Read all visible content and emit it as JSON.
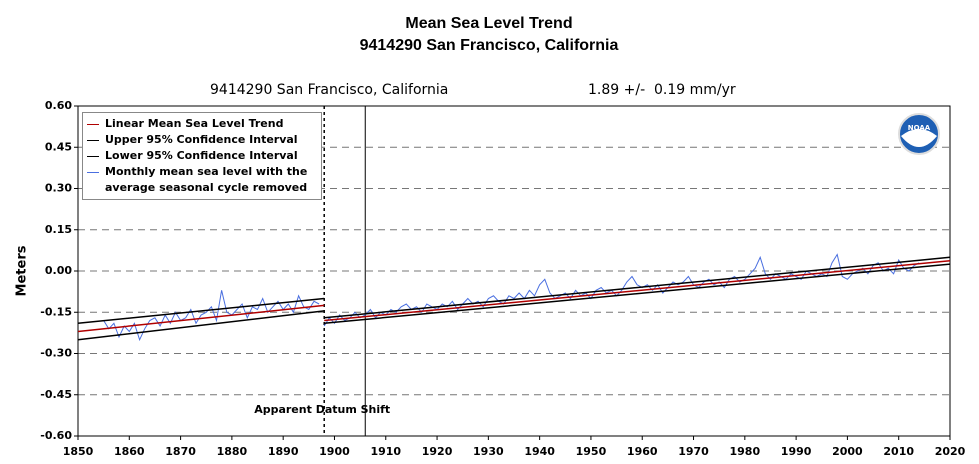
{
  "chart_data": {
    "type": "line",
    "title": "Mean Sea Level Trend",
    "subtitle": "9414290 San Francisco, California",
    "station_label": "9414290 San Francisco, California",
    "rate_label": "1.89 +/-  0.19 mm/yr",
    "ylabel": "Meters",
    "xlim": [
      1850,
      2020
    ],
    "xticks": [
      1850,
      1860,
      1870,
      1880,
      1890,
      1900,
      1910,
      1920,
      1930,
      1940,
      1950,
      1960,
      1970,
      1980,
      1990,
      2000,
      2010,
      2020
    ],
    "ylim": [
      -0.6,
      0.6
    ],
    "yticks": [
      {
        "value": -0.6,
        "label": "-0.60"
      },
      {
        "value": -0.45,
        "label": "-0.45"
      },
      {
        "value": -0.3,
        "label": "-0.30"
      },
      {
        "value": -0.15,
        "label": "-0.15"
      },
      {
        "value": 0,
        "label": "0.00"
      },
      {
        "value": 0.15,
        "label": "0.15"
      },
      {
        "value": 0.3,
        "label": "0.30"
      },
      {
        "value": 0.45,
        "label": "0.45"
      },
      {
        "value": 0.6,
        "label": "0.60"
      }
    ],
    "grid": true,
    "vlines": [
      {
        "x": 1898,
        "style": "dotted",
        "label": "Apparent Datum Shift"
      },
      {
        "x": 1906,
        "style": "solid"
      }
    ],
    "series": [
      {
        "name": "Monthly mean sea level with the average seasonal cycle removed",
        "color": "#4a6fe0",
        "width": 1,
        "x": [
          1855,
          1856,
          1857,
          1858,
          1859,
          1860,
          1861,
          1862,
          1863,
          1864,
          1865,
          1866,
          1867,
          1868,
          1869,
          1870,
          1871,
          1872,
          1873,
          1874,
          1875,
          1876,
          1877,
          1878,
          1879,
          1880,
          1881,
          1882,
          1883,
          1884,
          1885,
          1886,
          1887,
          1888,
          1889,
          1890,
          1891,
          1892,
          1893,
          1894,
          1895,
          1896,
          1897,
          1897.5,
          1898,
          1899,
          1900,
          1901,
          1902,
          1903,
          1904,
          1905,
          1906,
          1907,
          1908,
          1909,
          1910,
          1911,
          1912,
          1913,
          1914,
          1915,
          1916,
          1917,
          1918,
          1919,
          1920,
          1921,
          1922,
          1923,
          1924,
          1925,
          1926,
          1927,
          1928,
          1929,
          1930,
          1931,
          1932,
          1933,
          1934,
          1935,
          1936,
          1937,
          1938,
          1939,
          1940,
          1941,
          1942,
          1943,
          1944,
          1945,
          1946,
          1947,
          1948,
          1949,
          1950,
          1951,
          1952,
          1953,
          1954,
          1955,
          1956,
          1957,
          1958,
          1959,
          1960,
          1961,
          1962,
          1963,
          1964,
          1965,
          1966,
          1967,
          1968,
          1969,
          1970,
          1971,
          1972,
          1973,
          1974,
          1975,
          1976,
          1977,
          1978,
          1979,
          1980,
          1981,
          1982,
          1983,
          1984,
          1985,
          1986,
          1987,
          1988,
          1989,
          1990,
          1991,
          1992,
          1993,
          1994,
          1995,
          1996,
          1997,
          1998,
          1999,
          2000,
          2001,
          2002,
          2003,
          2004,
          2005,
          2006,
          2007,
          2008,
          2009,
          2010,
          2011,
          2012,
          2013,
          2014
        ],
        "values": [
          -0.18,
          -0.21,
          -0.19,
          -0.24,
          -0.2,
          -0.22,
          -0.19,
          -0.25,
          -0.21,
          -0.18,
          -0.17,
          -0.2,
          -0.16,
          -0.19,
          -0.15,
          -0.18,
          -0.17,
          -0.14,
          -0.19,
          -0.16,
          -0.15,
          -0.13,
          -0.18,
          -0.07,
          -0.15,
          -0.16,
          -0.14,
          -0.12,
          -0.17,
          -0.13,
          -0.14,
          -0.1,
          -0.15,
          -0.13,
          -0.11,
          -0.14,
          -0.12,
          -0.15,
          -0.09,
          -0.13,
          -0.14,
          -0.11,
          -0.12,
          null,
          -0.2,
          -0.17,
          -0.19,
          -0.16,
          -0.18,
          -0.17,
          -0.15,
          -0.17,
          -0.16,
          -0.14,
          -0.17,
          -0.15,
          -0.16,
          -0.14,
          -0.15,
          -0.13,
          -0.12,
          -0.14,
          -0.13,
          -0.15,
          -0.12,
          -0.13,
          -0.14,
          -0.12,
          -0.13,
          -0.11,
          -0.14,
          -0.12,
          -0.1,
          -0.12,
          -0.11,
          -0.13,
          -0.1,
          -0.09,
          -0.11,
          -0.12,
          -0.09,
          -0.1,
          -0.08,
          -0.1,
          -0.07,
          -0.09,
          -0.05,
          -0.03,
          -0.08,
          -0.1,
          -0.09,
          -0.08,
          -0.1,
          -0.07,
          -0.09,
          -0.08,
          -0.1,
          -0.07,
          -0.06,
          -0.08,
          -0.07,
          -0.09,
          -0.07,
          -0.04,
          -0.02,
          -0.05,
          -0.06,
          -0.05,
          -0.07,
          -0.05,
          -0.08,
          -0.06,
          -0.04,
          -0.05,
          -0.04,
          -0.02,
          -0.05,
          -0.06,
          -0.04,
          -0.03,
          -0.05,
          -0.04,
          -0.06,
          -0.03,
          -0.02,
          -0.04,
          -0.03,
          -0.01,
          0.01,
          0.05,
          -0.01,
          -0.03,
          -0.01,
          -0.02,
          -0.03,
          -0.01,
          -0.02,
          -0.03,
          0,
          -0.01,
          -0.02,
          -0.01,
          -0.02,
          0.03,
          0.06,
          -0.02,
          -0.03,
          -0.01,
          0,
          0.01,
          -0.01,
          0.02,
          0.03,
          0,
          0.01,
          -0.01,
          0.04,
          0.01,
          0,
          0.02,
          0.03
        ]
      },
      {
        "name": "Upper 95% Confidence Interval",
        "color": "#000000",
        "width": 1.5,
        "x": [
          1850,
          1898,
          1898,
          1898,
          2020
        ],
        "values": [
          -0.19,
          -0.1,
          null,
          -0.17,
          0.05
        ]
      },
      {
        "name": "Lower 95% Confidence Interval",
        "color": "#000000",
        "width": 1.5,
        "x": [
          1850,
          1898,
          1898,
          1898,
          2020
        ],
        "values": [
          -0.25,
          -0.145,
          null,
          -0.19,
          0.025
        ]
      },
      {
        "name": "Linear Mean Sea Level Trend",
        "color": "#b00000",
        "width": 1.5,
        "x": [
          1850,
          1898,
          1898,
          1898,
          2020
        ],
        "values": [
          -0.22,
          -0.125,
          null,
          -0.18,
          0.037
        ]
      }
    ],
    "legend_order": [
      3,
      1,
      2,
      0
    ]
  }
}
